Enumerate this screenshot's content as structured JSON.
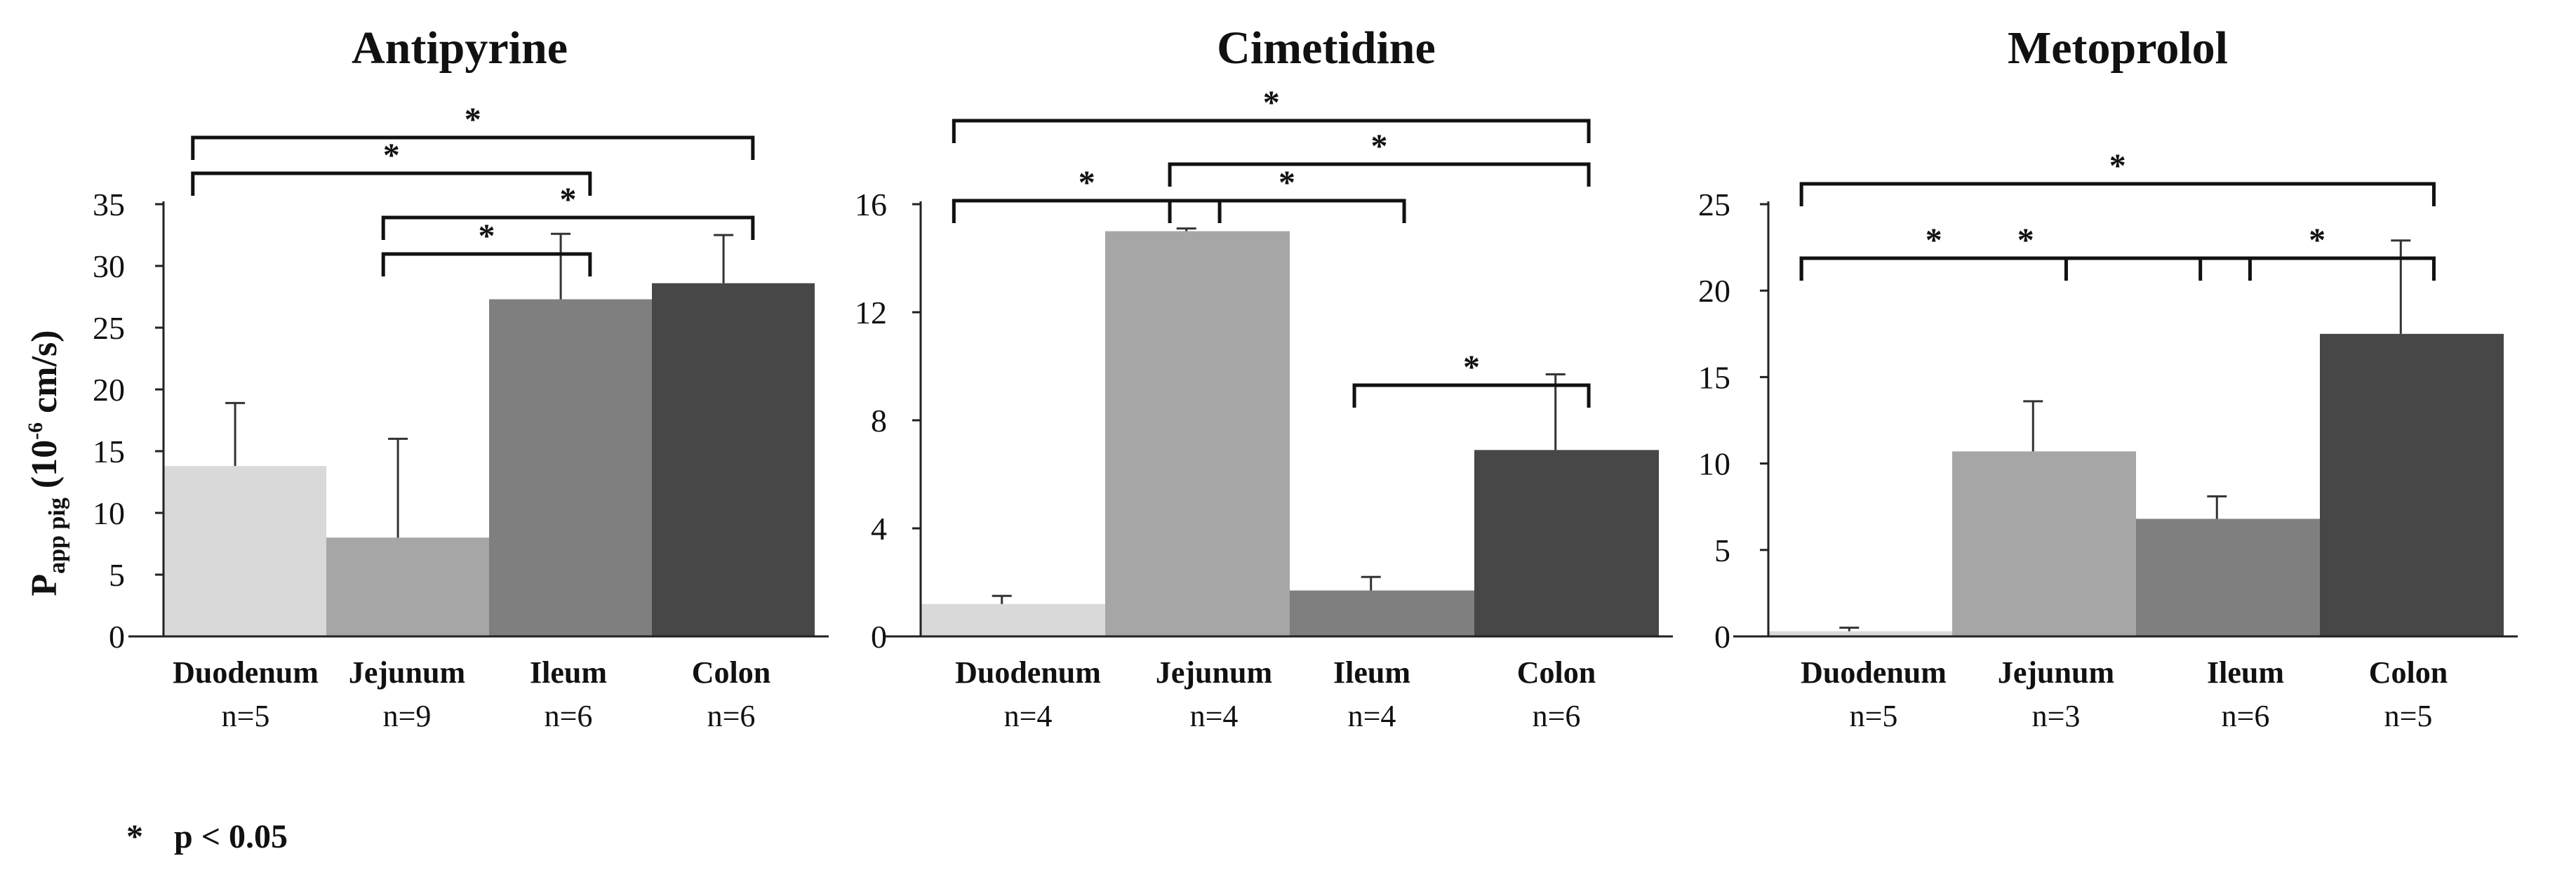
{
  "y_axis_label": {
    "main": "P",
    "subscript": "app pig",
    "open": " (10",
    "superscript": "-6",
    "close": " cm/s)"
  },
  "footnote": {
    "symbol": "*",
    "text": "p < 0.05"
  },
  "colors": {
    "duodenum": "#d9d9d9",
    "jejunum": "#a6a6a6",
    "ileum": "#7f7f7f",
    "colon": "#474747",
    "bracket": "#111111"
  },
  "chart_data": [
    {
      "type": "bar",
      "title": "Antipyrine",
      "categories": [
        "Duodenum",
        "Jejunum",
        "Ileum",
        "Colon"
      ],
      "sample_sizes": [
        "n=5",
        "n=9",
        "n=6",
        "n=6"
      ],
      "values": [
        13.8,
        8.0,
        27.3,
        28.6
      ],
      "errors": [
        5.1,
        8.0,
        5.3,
        3.9
      ],
      "ylim": [
        0,
        35
      ],
      "yticks": [
        0,
        5,
        10,
        15,
        20,
        25,
        30,
        35
      ],
      "significance": [
        {
          "from": 0,
          "to": 3,
          "label": "*"
        },
        {
          "from": 0,
          "to": 2,
          "label": "*"
        },
        {
          "from": 1,
          "to": 2,
          "label": "*"
        },
        {
          "from": 1,
          "to": 3,
          "label": "*"
        }
      ]
    },
    {
      "type": "bar",
      "title": "Cimetidine",
      "categories": [
        "Duodenum",
        "Jejunum",
        "Ileum",
        "Colon"
      ],
      "sample_sizes": [
        "n=4",
        "n=4",
        "n=4",
        "n=6"
      ],
      "values": [
        1.2,
        15.0,
        1.7,
        6.9
      ],
      "errors": [
        0.3,
        0.1,
        0.5,
        2.8
      ],
      "ylim": [
        0,
        16
      ],
      "yticks": [
        0,
        4,
        8,
        12,
        16
      ],
      "significance": [
        {
          "from": 0,
          "to": 3,
          "label": "*"
        },
        {
          "from": 0,
          "to": 1,
          "label": "*"
        },
        {
          "from": 1,
          "to": 3,
          "label": "*"
        },
        {
          "from": 1,
          "to": 2,
          "label": "*"
        },
        {
          "from": 2,
          "to": 3,
          "label": "*"
        }
      ]
    },
    {
      "type": "bar",
      "title": "Metoprolol",
      "categories": [
        "Duodenum",
        "Jejunum",
        "Ileum",
        "Colon"
      ],
      "sample_sizes": [
        "n=5",
        "n=3",
        "n=6",
        "n=5"
      ],
      "values": [
        0.3,
        10.7,
        6.8,
        17.5
      ],
      "errors": [
        0.2,
        2.9,
        1.3,
        5.4
      ],
      "ylim": [
        0,
        25
      ],
      "yticks": [
        0,
        5,
        10,
        15,
        20,
        25
      ],
      "significance": [
        {
          "from": 0,
          "to": 3,
          "label": "*"
        },
        {
          "from": 0,
          "to": 2,
          "label": "*"
        },
        {
          "from": 0,
          "to": 1,
          "label": "*"
        },
        {
          "from": 2,
          "to": 3,
          "label": "*"
        }
      ]
    }
  ]
}
